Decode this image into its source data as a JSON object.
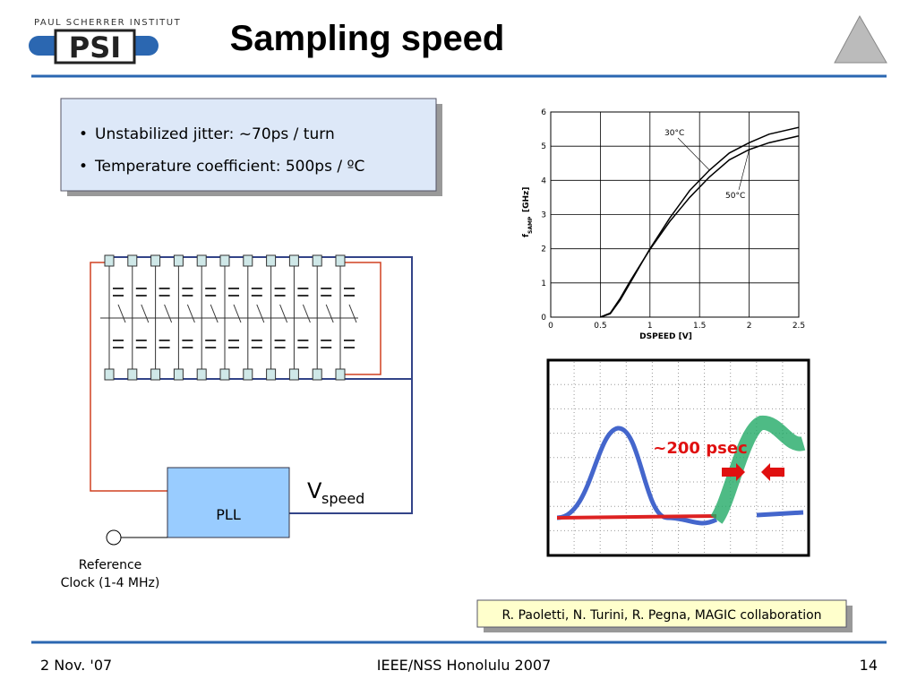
{
  "header": {
    "institute": "PAUL SCHERRER INSTITUT",
    "logo": "PSI",
    "title": "Sampling speed"
  },
  "bullets": [
    "Unstabilized jitter: ~70ps / turn",
    "Temperature coefficient: 500ps / ºC"
  ],
  "circuit": {
    "pll": "PLL",
    "vspeed": "V",
    "vspeed_sub": "speed",
    "reference": [
      "Reference",
      "Clock (1-4 MHz)"
    ]
  },
  "chart_data": {
    "type": "line",
    "ylabel": {
      "symbol": "f",
      "sub": "SAMP",
      "unit": "[GHz]"
    },
    "xlabel": "DSPEED [V]",
    "xlim": [
      0,
      2.5
    ],
    "xticks": [
      0,
      0.5,
      1,
      1.5,
      2,
      2.5
    ],
    "ylim": [
      0,
      6
    ],
    "yticks": [
      0,
      1,
      2,
      3,
      4,
      5,
      6
    ],
    "grid": true,
    "x": [
      0.5,
      0.6,
      0.7,
      0.8,
      0.9,
      1.0,
      1.2,
      1.4,
      1.6,
      1.8,
      2.0,
      2.2,
      2.5
    ],
    "series": [
      {
        "name": "30°C",
        "color": "#000000",
        "values": [
          0,
          0.1,
          0.5,
          1.0,
          1.5,
          2.0,
          2.9,
          3.7,
          4.3,
          4.8,
          5.1,
          5.35,
          5.55
        ]
      },
      {
        "name": "50°C",
        "color": "#000000",
        "values": [
          0,
          0.12,
          0.55,
          1.05,
          1.52,
          1.98,
          2.8,
          3.5,
          4.1,
          4.6,
          4.9,
          5.1,
          5.3
        ]
      }
    ]
  },
  "scope": {
    "annotation": "~200 psec"
  },
  "citation": "R. Paoletti, N. Turini, R. Pegna, MAGIC collaboration",
  "footer": {
    "date": "2 Nov. '07",
    "event": "IEEE/NSS Honolulu 2007",
    "page": "14"
  }
}
